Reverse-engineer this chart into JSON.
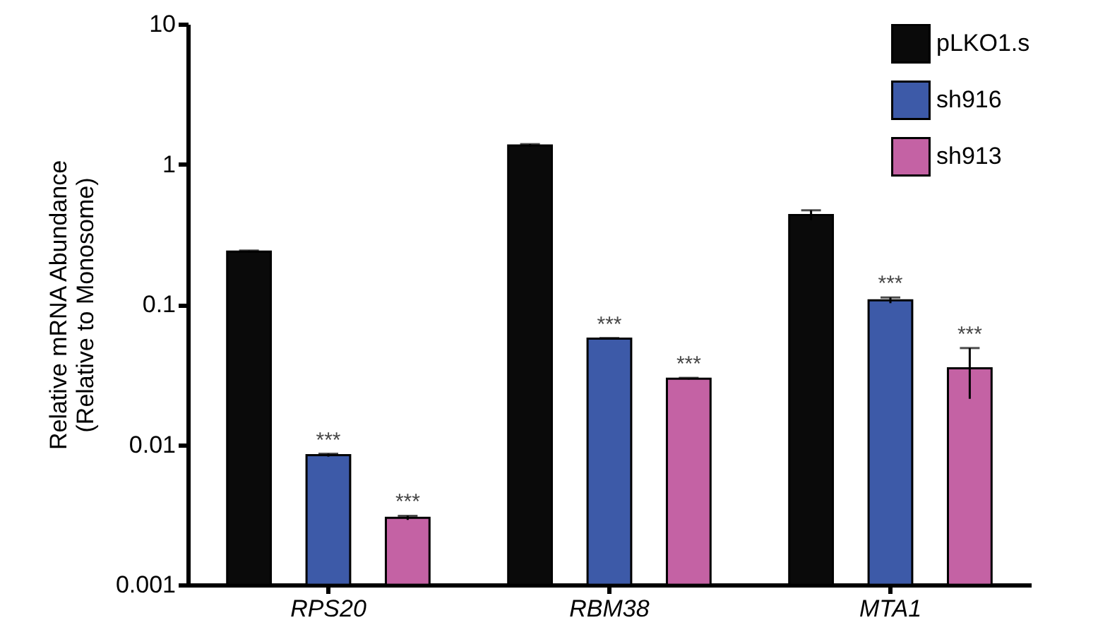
{
  "chart_data": {
    "type": "bar",
    "ylabel": "Relative mRNA Abundance\n(Relative to Monosome)",
    "categories": [
      "RPS20",
      "RBM38",
      "MTA1"
    ],
    "series": [
      {
        "name": "pLKO1.s",
        "color": "#0a0a0a",
        "values": [
          0.238,
          1.36,
          0.434
        ],
        "errors": [
          0.004,
          0.03,
          0.035
        ]
      },
      {
        "name": "sh916",
        "color": "#3d5aa8",
        "values": [
          0.0084,
          0.057,
          0.107
        ],
        "errors": [
          0.0002,
          0.0005,
          0.005
        ]
      },
      {
        "name": "sh913",
        "color": "#c462a4",
        "values": [
          0.003,
          0.0295,
          0.035
        ],
        "errors": [
          0.0001,
          0.0004,
          0.0138
        ]
      }
    ],
    "log": true,
    "ylim": [
      0.001,
      10
    ],
    "yticks": [
      0.001,
      0.01,
      0.1,
      1,
      10
    ],
    "legend": "top right",
    "annotations": [
      {
        "text": "***",
        "x": "RPS20",
        "y": 0.0084
      },
      "***",
      {
        "text": "***",
        "x": "RBM38",
        "y": 0.057
      },
      "***",
      {
        "text": "***",
        "x": "MTA1",
        "y": 0.107
      },
      "***"
    ]
  }
}
